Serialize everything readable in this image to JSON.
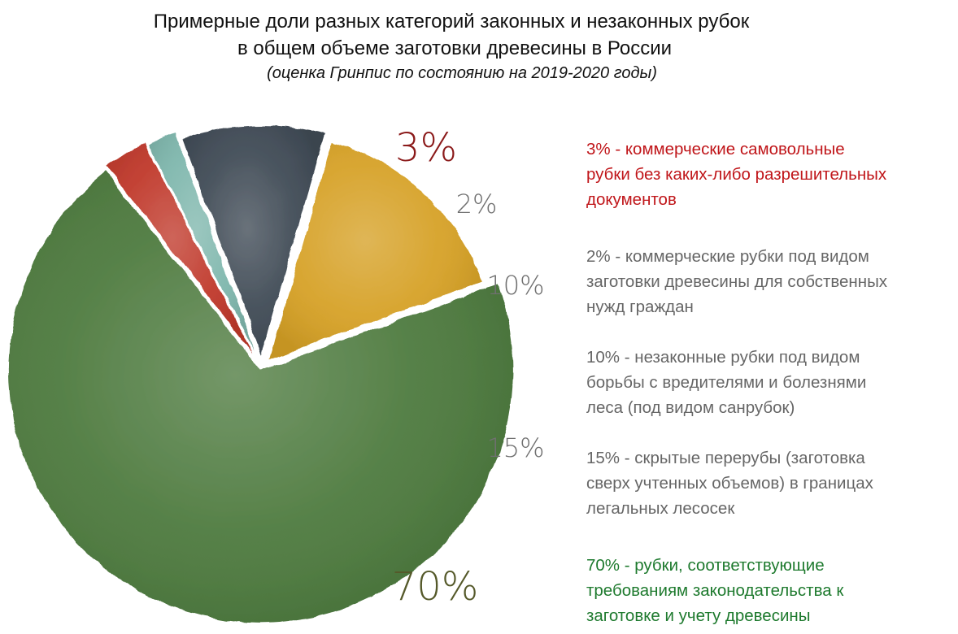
{
  "chart_data": {
    "type": "pie",
    "title_line1": "Примерные доли разных категорий законных и незаконных рубок",
    "title_line2": "в общем объеме заготовки древесины в России",
    "subtitle": "(оценка Гринпис по состоянию на 2019-2020 годы)",
    "slices": [
      {
        "value": 3,
        "label": "3%",
        "color": "#c0392b",
        "text_color": "#8b1a1a",
        "legend_color": "#c0161a",
        "legend": "3% - коммерческие самовольные\nрубки без каких-либо разрешительных\nдокументов"
      },
      {
        "value": 2,
        "label": "2%",
        "color": "#7fb7ad",
        "text_color": "#707070",
        "legend_color": "#666666",
        "legend": "2% - коммерческие рубки под видом\nзаготовки древесины для собственных\nнужд граждан"
      },
      {
        "value": 10,
        "label": "10%",
        "color": "#3f4a55",
        "text_color": "#707070",
        "legend_color": "#666666",
        "legend": "10% - незаконные рубки под видом\nборьбы с вредителями и болезнями\nлеса (под видом санрубок)"
      },
      {
        "value": 15,
        "label": "15%",
        "color": "#d6a126",
        "text_color": "#707070",
        "legend_color": "#666666",
        "legend": "15% - скрытые перерубы (заготовка\nсверх учтенных объемов) в границах\nлегальных лесосек"
      },
      {
        "value": 70,
        "label": "70%",
        "color": "#4d7a3e",
        "text_color": "#55592a",
        "legend_color": "#1e7a2e",
        "legend": "70% - рубки, соответствующие\nтребованиям законодательства к\nзаготовке и учету древесины"
      }
    ]
  }
}
